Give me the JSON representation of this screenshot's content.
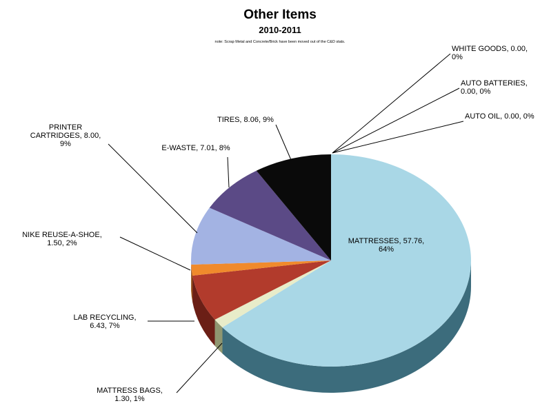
{
  "chart_data": {
    "type": "pie",
    "title": "Other Items",
    "subtitle": "2010-2011",
    "note": "note: Scrap Metal and Concrete/Brick have been moved out of the C&D stats.",
    "slices": [
      {
        "name": "MATTRESSES",
        "value": 57.76,
        "percent": "64%",
        "label_lines": [
          "MATTRESSES, 57.76,",
          "64%"
        ],
        "color": "#a9d7e6",
        "side_color": "#3c6c7c"
      },
      {
        "name": "MATTRESS BAGS",
        "value": 1.3,
        "percent": "1%",
        "label_lines": [
          "MATTRESS BAGS,",
          "1.30, 1%"
        ],
        "color": "#e8ecc9",
        "side_color": "#8f9670"
      },
      {
        "name": "LAB RECYCLING",
        "value": 6.43,
        "percent": "7%",
        "label_lines": [
          "LAB RECYCLING,",
          "6.43, 7%"
        ],
        "color": "#b23b2c",
        "side_color": "#6b1f16"
      },
      {
        "name": "NIKE REUSE-A-SHOE",
        "value": 1.5,
        "percent": "2%",
        "label_lines": [
          "NIKE REUSE-A-SHOE,",
          "1.50, 2%"
        ],
        "color": "#f08a2c",
        "side_color": "#9a4e10"
      },
      {
        "name": "PRINTER CARTRIDGES",
        "value": 8.0,
        "percent": "9%",
        "label_lines": [
          "PRINTER",
          "CARTRIDGES, 8.00,",
          "9%"
        ],
        "color": "#a3b3e3",
        "side_color": "#59648c"
      },
      {
        "name": "E-WASTE",
        "value": 7.01,
        "percent": "8%",
        "label_lines": [
          "E-WASTE, 7.01, 8%"
        ],
        "color": "#5b4a86",
        "side_color": "#32284e"
      },
      {
        "name": "TIRES",
        "value": 8.06,
        "percent": "9%",
        "label_lines": [
          "TIRES, 8.06, 9%"
        ],
        "color": "#0a0a0a",
        "side_color": "#000000"
      },
      {
        "name": "AUTO OIL",
        "value": 0.0,
        "percent": "0%",
        "label_lines": [
          "AUTO OIL, 0.00, 0%"
        ],
        "color": "#888888",
        "side_color": "#555555"
      },
      {
        "name": "AUTO BATTERIES",
        "value": 0.0,
        "percent": "0%",
        "label_lines": [
          "AUTO BATTERIES,",
          "0.00, 0%"
        ],
        "color": "#888888",
        "side_color": "#555555"
      },
      {
        "name": "WHITE GOODS",
        "value": 0.0,
        "percent": "0%",
        "label_lines": [
          "WHITE GOODS, 0.00,",
          "0%"
        ],
        "color": "#888888",
        "side_color": "#555555"
      }
    ],
    "legend": "none",
    "grid": false
  }
}
